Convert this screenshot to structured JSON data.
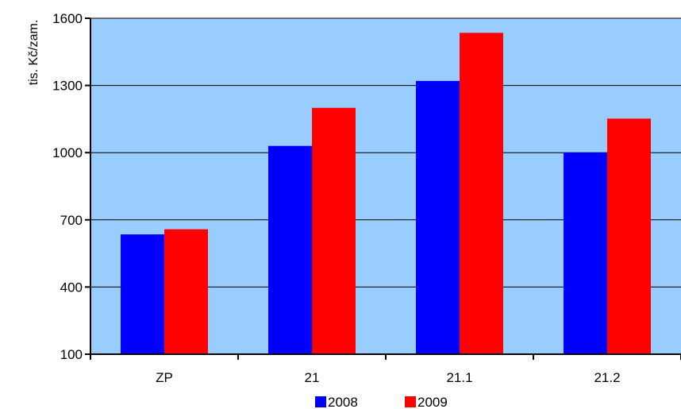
{
  "chart_data": {
    "type": "bar",
    "title": "",
    "xlabel": "",
    "ylabel": "tis. Kč/zam.",
    "ylim": [
      100,
      1600
    ],
    "yticks": [
      100,
      400,
      700,
      1000,
      1300,
      1600
    ],
    "ytick_labels": [
      "100",
      "400",
      "700",
      "1000",
      "1300",
      "1600"
    ],
    "categories": [
      "ZP",
      "21",
      "21.1",
      "21.2"
    ],
    "series": [
      {
        "name": "2008",
        "values": [
          635,
          1030,
          1320,
          1000
        ],
        "color": "#0000ff"
      },
      {
        "name": "2009",
        "values": [
          658,
          1200,
          1535,
          1152
        ],
        "color": "#ff0000"
      }
    ],
    "plot_background": "#99ccff",
    "grid": true,
    "legend_position": "bottom"
  }
}
